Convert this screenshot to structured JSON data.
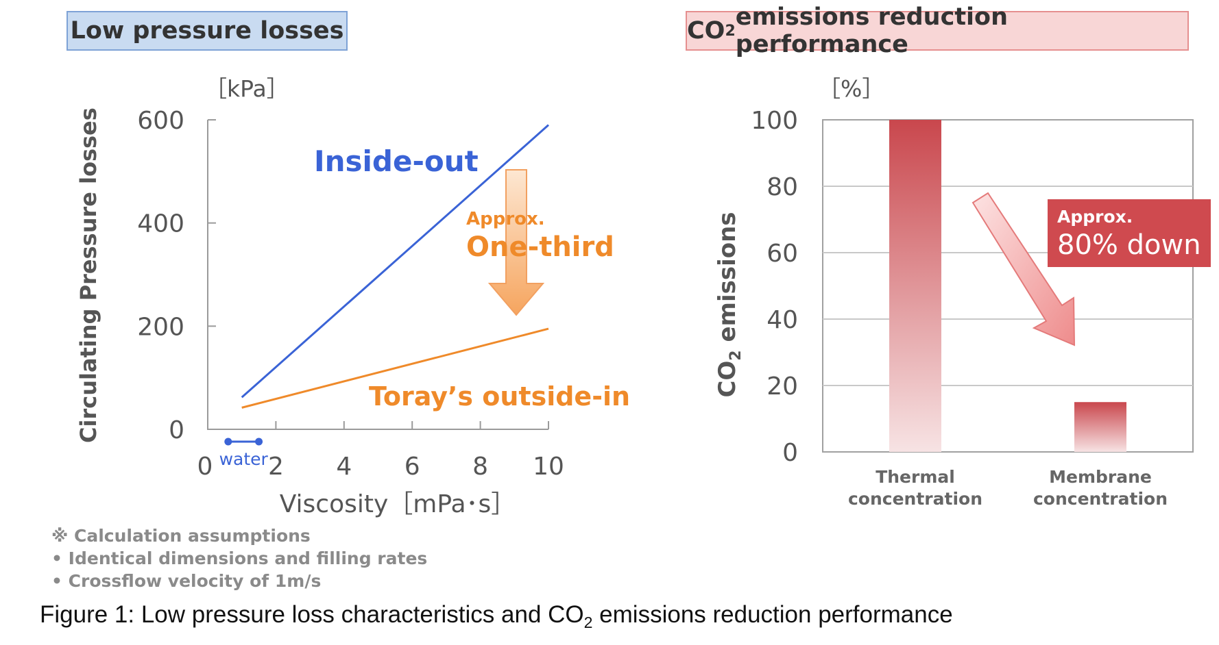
{
  "left_title": "Low pressure losses",
  "right_title": {
    "prefix": "CO",
    "sub": "2",
    "suffix": " emissions reduction performance"
  },
  "chart_data": [
    {
      "type": "line",
      "title": "Low pressure losses",
      "xlabel": "Viscosity［mPa･s］",
      "ylabel": "Circulating Pressure losses",
      "yunit": "［kPa］",
      "xlim": [
        0,
        10
      ],
      "ylim": [
        0,
        600
      ],
      "xticks": [
        0,
        2,
        4,
        6,
        8,
        10
      ],
      "yticks": [
        0,
        200,
        400,
        600
      ],
      "series": [
        {
          "name": "Inside-out",
          "color": "#3a63d6",
          "x": [
            1,
            10
          ],
          "y": [
            62,
            590
          ]
        },
        {
          "name": "Toray’s outside-in",
          "color": "#ef8a2a",
          "x": [
            1,
            10
          ],
          "y": [
            42,
            195
          ]
        }
      ],
      "annotations": {
        "water_label": "water",
        "water_range": [
          0.6,
          1.5
        ],
        "approx": "Approx.",
        "one_third": "One-third"
      }
    },
    {
      "type": "bar",
      "title": "CO2 emissions reduction performance",
      "ylabel": {
        "prefix": "CO",
        "sub": "2",
        "suffix": " emissions"
      },
      "yunit": "［%］",
      "ylim": [
        0,
        100
      ],
      "yticks": [
        0,
        20,
        40,
        60,
        80,
        100
      ],
      "categories": [
        [
          "Thermal",
          "concentration"
        ],
        [
          "Membrane",
          "concentration"
        ]
      ],
      "values": [
        100,
        15
      ],
      "annotations": {
        "approx": "Approx.",
        "down": "80% down"
      }
    }
  ],
  "notes": {
    "line1": "※ Calculation assumptions",
    "line2": "• Identical dimensions and filling rates",
    "line3": "• Crossflow velocity of 1m/s"
  },
  "caption": {
    "prefix": "Figure 1: Low pressure loss characteristics and CO",
    "sub": "2",
    "suffix": " emissions reduction performance"
  },
  "colors": {
    "blue": "#3a63d6",
    "orange": "#ef8a2a",
    "bar_red": "#c9474d",
    "banner": "#cf4a4f"
  }
}
